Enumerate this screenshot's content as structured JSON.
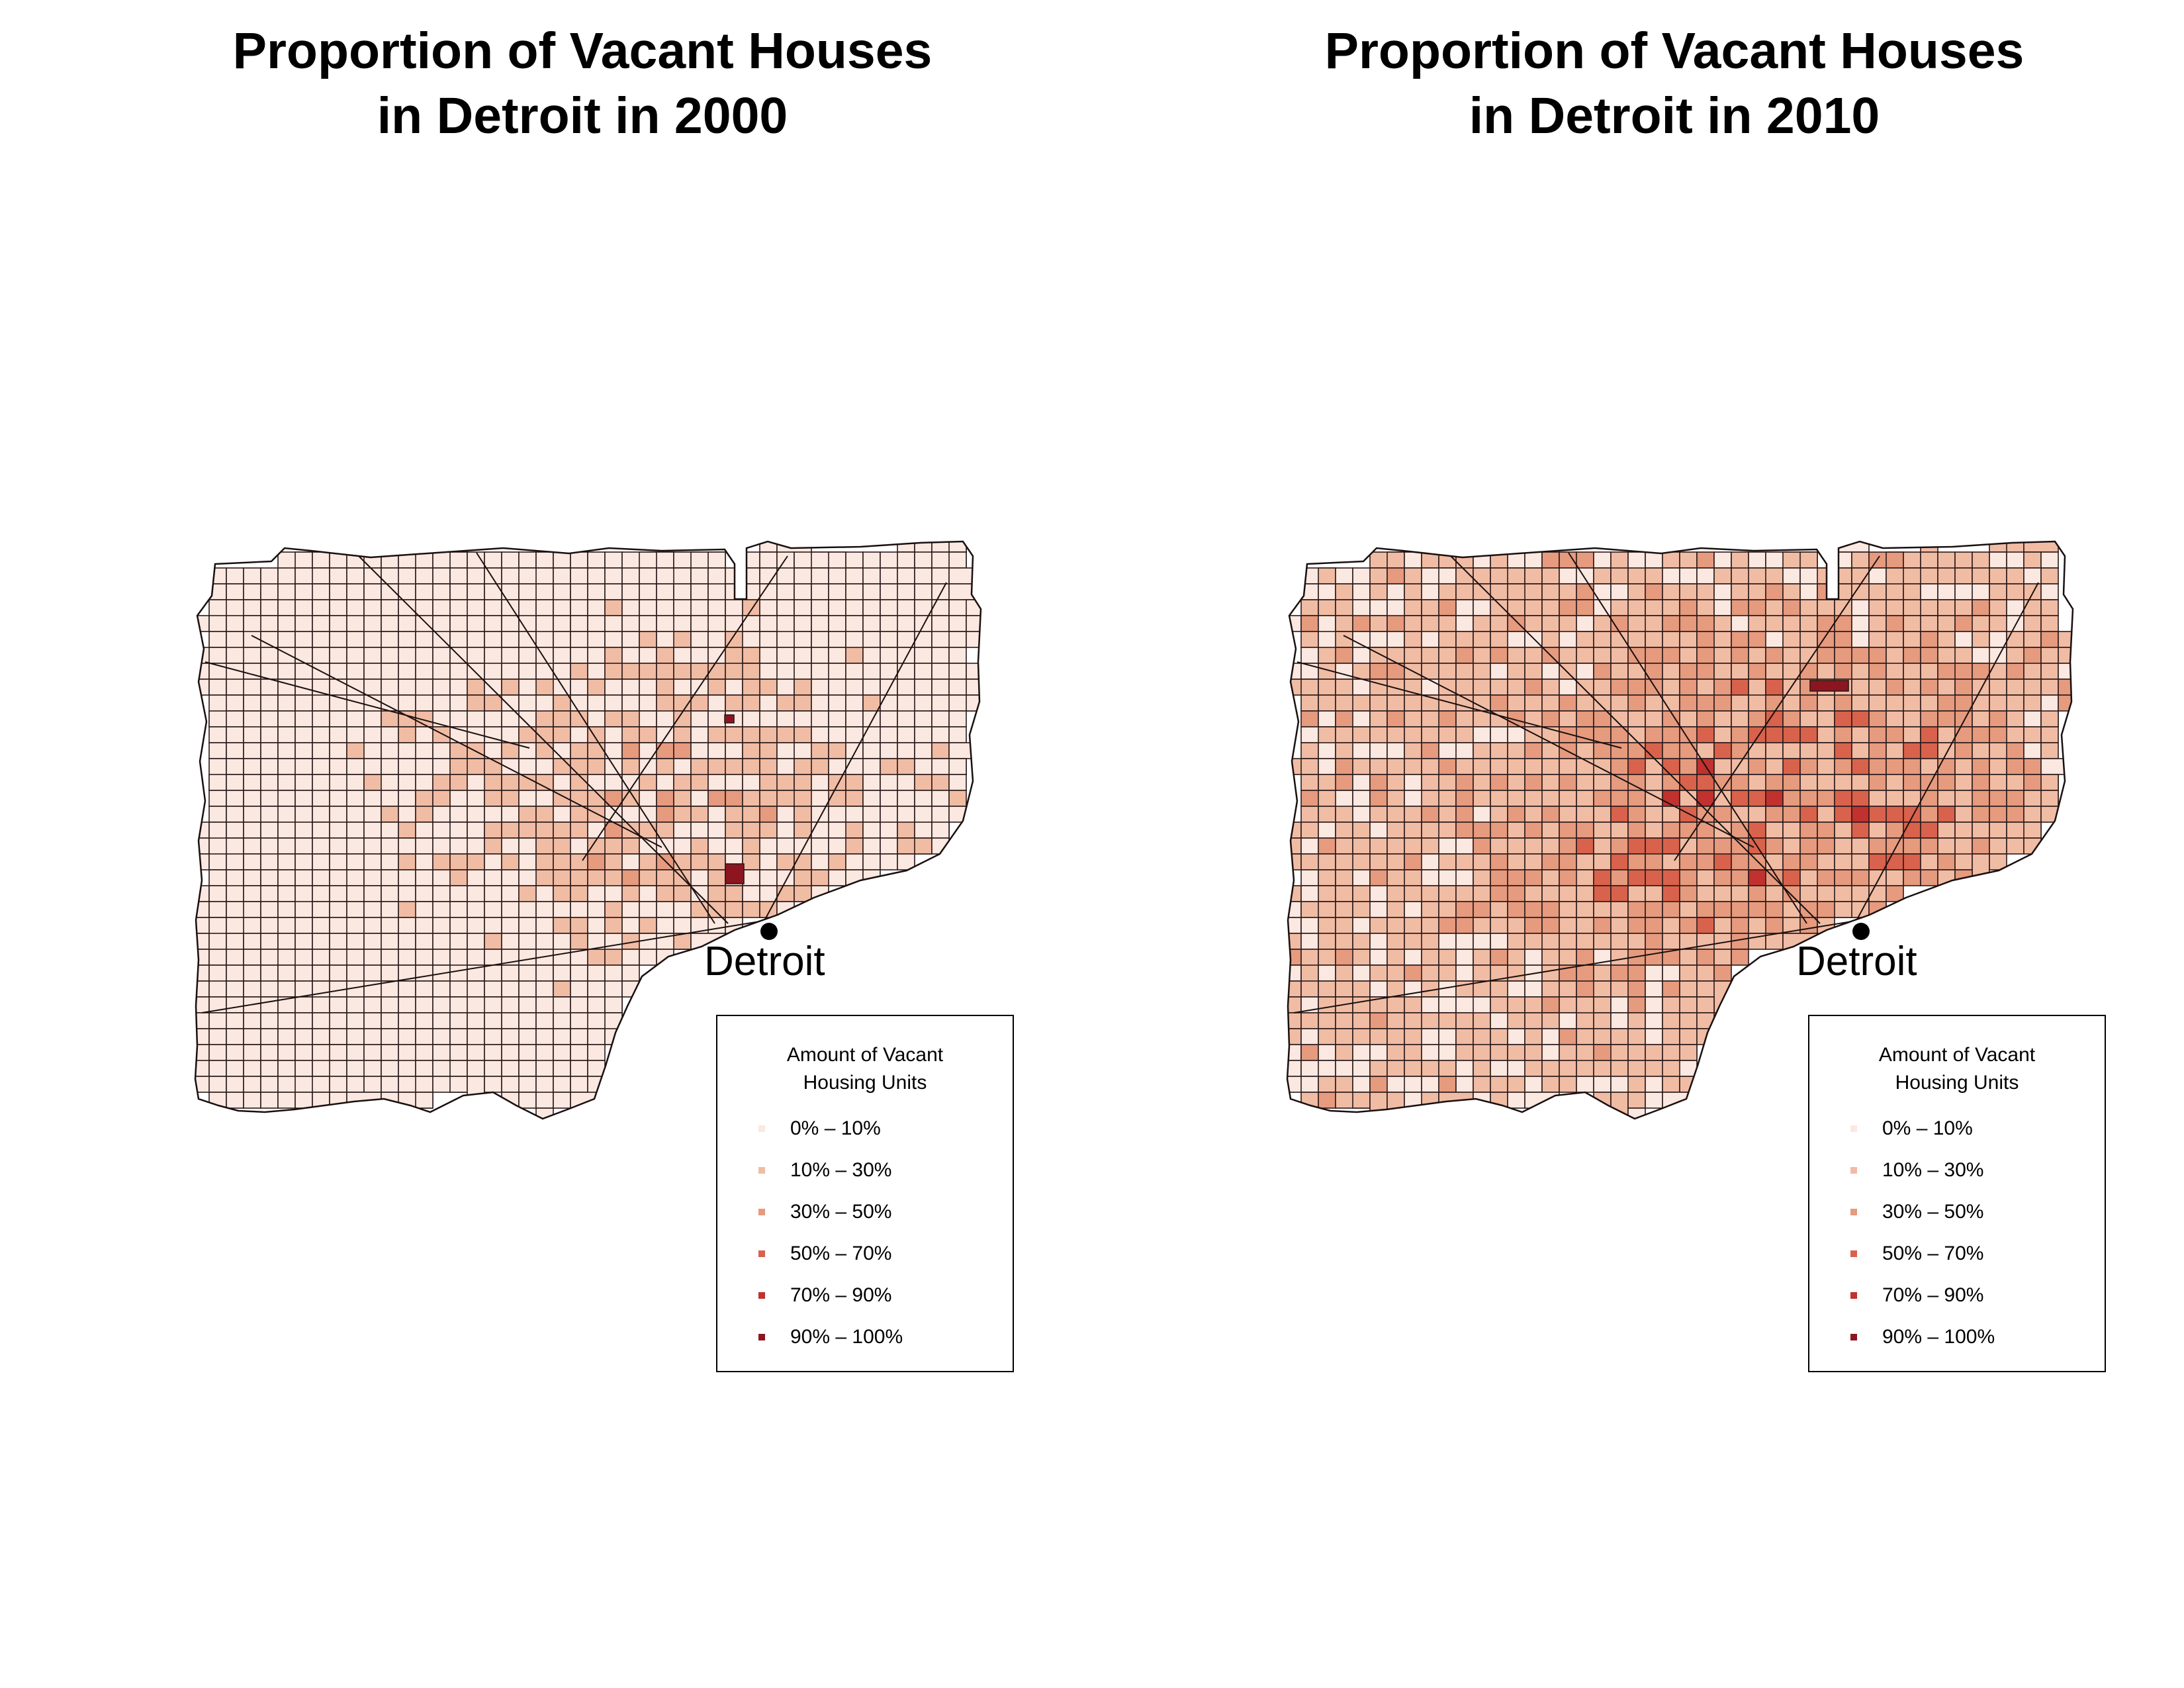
{
  "maps": [
    {
      "title_lines": [
        "Proportion of Vacant Houses",
        "in Detroit in 2000"
      ],
      "city_label": "Detroit",
      "legend_title_lines": [
        "Amount of Vacant",
        "Housing Units"
      ],
      "year": 2000
    },
    {
      "title_lines": [
        "Proportion of Vacant Houses",
        "in Detroit in 2010"
      ],
      "city_label": "Detroit",
      "legend_title_lines": [
        "Amount of Vacant",
        "Housing Units"
      ],
      "year": 2010
    }
  ],
  "legend_classes": [
    {
      "label": "0% – 10%",
      "color": "#fbe8e0"
    },
    {
      "label": "10% – 30%",
      "color": "#f1bca4"
    },
    {
      "label": "30% – 50%",
      "color": "#e69a7e"
    },
    {
      "label": "50% – 70%",
      "color": "#d9624c"
    },
    {
      "label": "70% – 90%",
      "color": "#c0312f"
    },
    {
      "label": "90% – 100%",
      "color": "#8c1520"
    }
  ],
  "chart_data": [
    {
      "type": "choropleth",
      "title": "Proportion of Vacant Houses in Detroit in 2000",
      "legend_title": "Amount of Vacant Housing Units",
      "classes": [
        "0% – 10%",
        "10% – 30%",
        "30% – 50%",
        "50% – 70%",
        "70% – 90%",
        "90% – 100%"
      ],
      "marker": "Detroit",
      "legend_position": "bottom-right",
      "predominant_class": "0% – 10%"
    },
    {
      "type": "choropleth",
      "title": "Proportion of Vacant Houses in Detroit in 2010",
      "legend_title": "Amount of Vacant Housing Units",
      "classes": [
        "0% – 10%",
        "10% – 30%",
        "30% – 50%",
        "50% – 70%",
        "70% – 90%",
        "90% – 100%"
      ],
      "marker": "Detroit",
      "legend_position": "bottom-right",
      "predominant_class": "10% – 30%"
    }
  ]
}
